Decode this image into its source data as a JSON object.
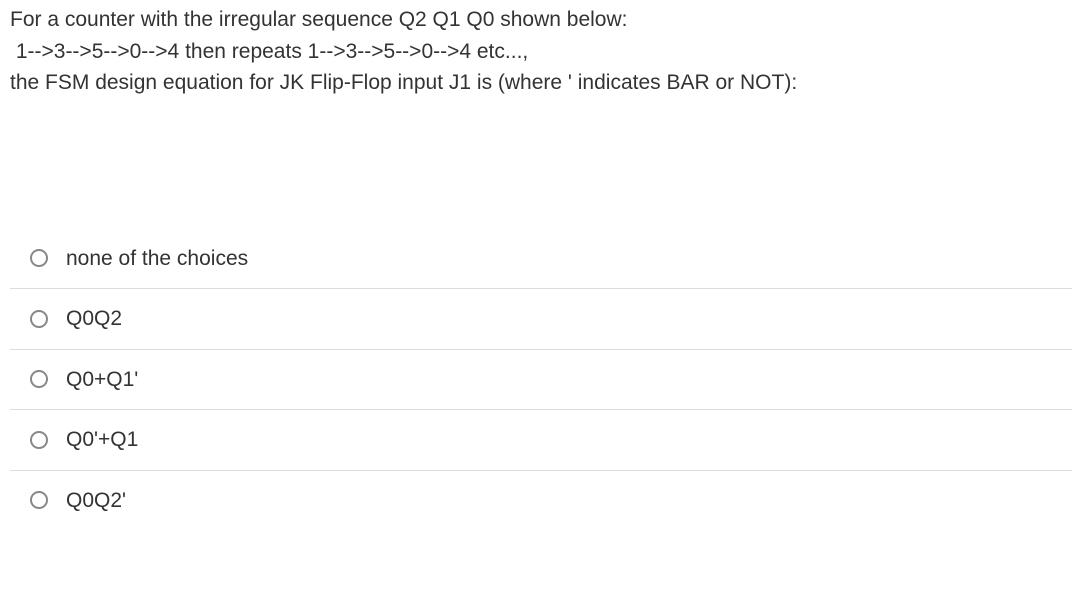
{
  "question": {
    "line1": "For a counter with the irregular sequence Q2 Q1 Q0 shown below:",
    "line2": " 1-->3-->5-->0-->4 then repeats 1-->3-->5-->0-->4 etc...,",
    "line3": "the FSM design equation for JK Flip-Flop input J1 is (where ' indicates BAR or NOT):"
  },
  "options": [
    {
      "label": "none of the choices"
    },
    {
      "label": "Q0Q2"
    },
    {
      "label": "Q0+Q1'"
    },
    {
      "label": "Q0'+Q1"
    },
    {
      "label": "Q0Q2'"
    }
  ]
}
